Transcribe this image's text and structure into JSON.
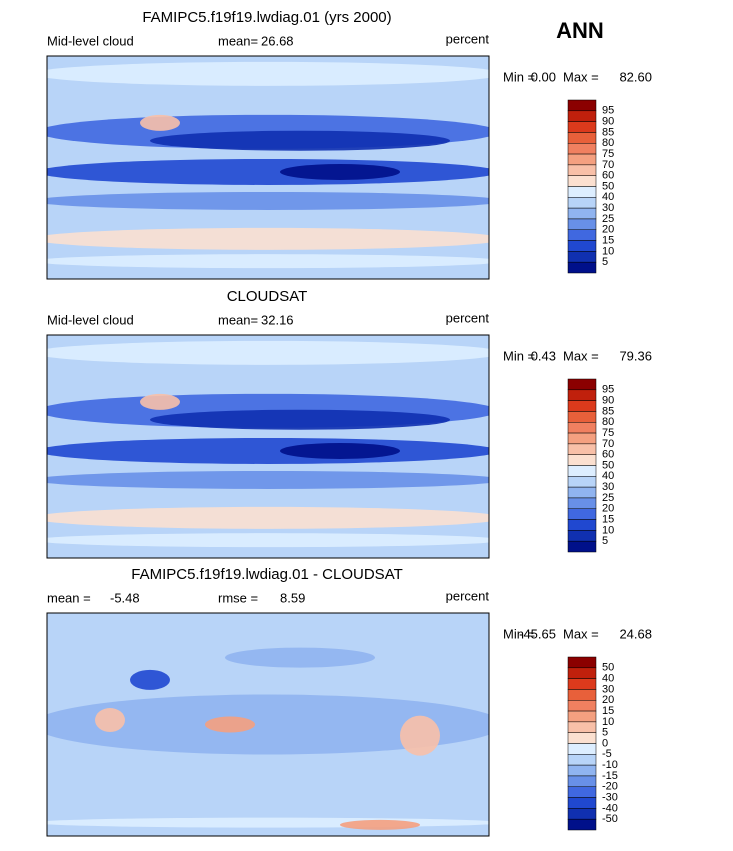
{
  "season": "ANN",
  "panels": [
    {
      "title": "FAMIPC5.f19f19.lwdiag.01 (yrs 2000)",
      "left_label": "Mid-level cloud",
      "mean_label": "mean=",
      "mean": "26.68",
      "units": "percent",
      "min_label": "Min =",
      "min": "0.00",
      "max_label": "Max =",
      "max": "82.60",
      "colorbar": {
        "levels": [
          95,
          90,
          85,
          80,
          75,
          70,
          60,
          50,
          40,
          30,
          25,
          20,
          15,
          10,
          5
        ],
        "colors": [
          "#8b0000",
          "#c0200c",
          "#dc3a1c",
          "#e8603a",
          "#f08060",
          "#f4a080",
          "#f8c0a8",
          "#fbe0d0",
          "#ddeeff",
          "#b8d4f8",
          "#90b4f0",
          "#6890e8",
          "#4068e0",
          "#2048d0",
          "#1030b0",
          "#00108a"
        ]
      }
    },
    {
      "title": "CLOUDSAT",
      "left_label": "Mid-level cloud",
      "mean_label": "mean=",
      "mean": "32.16",
      "units": "percent",
      "min_label": "Min =",
      "min": "0.43",
      "max_label": "Max =",
      "max": "79.36",
      "colorbar": {
        "levels": [
          95,
          90,
          85,
          80,
          75,
          70,
          60,
          50,
          40,
          30,
          25,
          20,
          15,
          10,
          5
        ],
        "colors": [
          "#8b0000",
          "#c0200c",
          "#dc3a1c",
          "#e8603a",
          "#f08060",
          "#f4a080",
          "#f8c0a8",
          "#fbe0d0",
          "#ddeeff",
          "#b8d4f8",
          "#90b4f0",
          "#6890e8",
          "#4068e0",
          "#2048d0",
          "#1030b0",
          "#00108a"
        ]
      }
    },
    {
      "title": "FAMIPC5.f19f19.lwdiag.01 - CLOUDSAT",
      "left_label": "mean =",
      "mean": "-5.48",
      "mean_label": "rmse =",
      "rmse": "8.59",
      "units": "percent",
      "min_label": "Min =",
      "min": "-45.65",
      "max_label": "Max =",
      "max": "24.68",
      "colorbar": {
        "levels": [
          50,
          40,
          30,
          20,
          15,
          10,
          5,
          0,
          -5,
          -10,
          -15,
          -20,
          -30,
          -40,
          -50
        ],
        "colors": [
          "#8b0000",
          "#c0200c",
          "#dc3a1c",
          "#e8603a",
          "#f08060",
          "#f4a080",
          "#f8c0a8",
          "#fbe0d0",
          "#ddeeff",
          "#b8d4f8",
          "#90b4f0",
          "#6890e8",
          "#4068e0",
          "#2048d0",
          "#1030b0",
          "#00108a"
        ]
      }
    }
  ]
}
